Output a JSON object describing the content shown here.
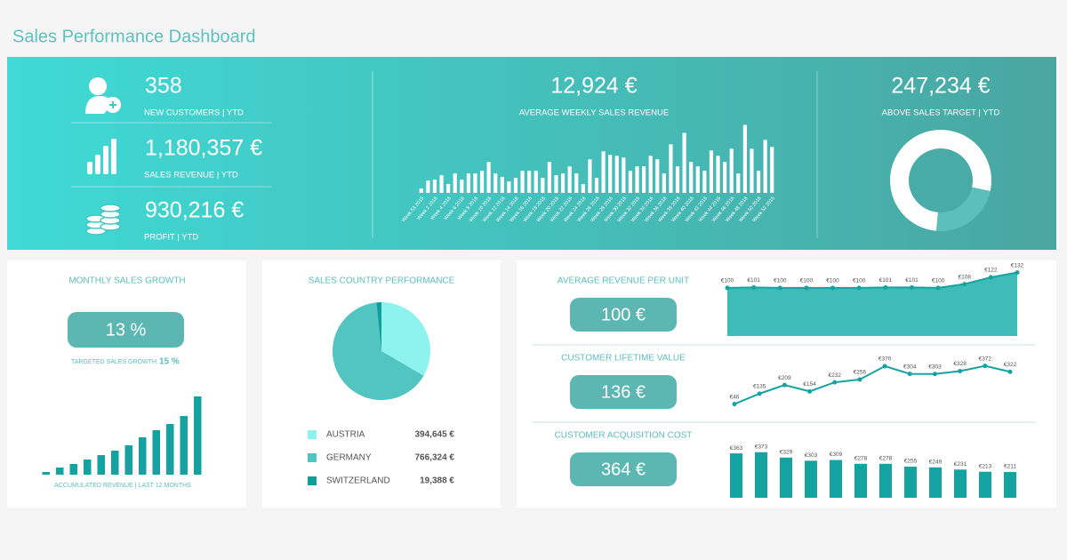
{
  "header": {
    "title": "Sales Performance Dashboard"
  },
  "kpis": [
    {
      "value": "358",
      "label": "NEW CUSTOMERS | YTD"
    },
    {
      "value": "1,180,357 €",
      "label": "SALES REVENUE | YTD"
    },
    {
      "value": "930,216 €",
      "label": "PROFIT | YTD"
    }
  ],
  "chart_data": [
    {
      "type": "bar",
      "headline": "12,924 €",
      "title": "AVERAGE WEEKLY SALES REVENUE",
      "categories": [
        "Week 53 2015",
        null,
        "Week 2 2016",
        null,
        "Week 4 2016",
        null,
        "Week 6 2016",
        null,
        "Week 8 2016",
        null,
        "Week 10 2016",
        null,
        "Week 12 2016",
        null,
        "Week 14 2016",
        null,
        "Week 16 2016",
        null,
        "Week 18 2016",
        null,
        "Week 20 2016",
        null,
        "Week 22 2016",
        null,
        "Week 24 2016",
        null,
        "Week 26 2016",
        null,
        "Week 28 2016",
        null,
        "Week 30 2016",
        null,
        "Week 32 2016",
        null,
        "Week 34 2016",
        null,
        "Week 36 2016",
        null,
        "Week 38 2016",
        null,
        "Week 40 2016",
        null,
        "Week 42 2016",
        null,
        "Week 44 2016",
        null,
        "Week 46 2016",
        null,
        "Week 48 2016",
        null,
        "Week 50 2016",
        null,
        "Week 52 2016"
      ],
      "values": [
        2000,
        5600,
        6000,
        8000,
        4000,
        8800,
        6000,
        8800,
        8800,
        10000,
        14000,
        8800,
        7200,
        5200,
        6800,
        10000,
        10000,
        10000,
        6800,
        14000,
        8000,
        8800,
        12000,
        8800,
        4000,
        15200,
        6800,
        18800,
        17200,
        16800,
        16000,
        10000,
        12000,
        12000,
        16800,
        15200,
        8800,
        22000,
        12000,
        27200,
        14000,
        12000,
        10000,
        19200,
        16800,
        14000,
        20000,
        8800,
        30800,
        20000,
        10000,
        24000,
        20800
      ],
      "color": "#ffffff",
      "ylim": [
        0,
        31000
      ]
    },
    {
      "type": "donut",
      "headline": "247,234 €",
      "title": "ABOVE SALES TARGET | YTD",
      "values": [
        77,
        23
      ],
      "colors": [
        "#ffffff",
        "#5cbfb9"
      ]
    },
    {
      "type": "bar",
      "title": "MONTHLY SALES GROWTH",
      "headline": "13 %",
      "target_label": "TARGETED SALES GROWTH:",
      "target_value": "15 %",
      "xlabel": "ACCUMULATED REVENUE | LAST 12 MONTHS",
      "values": [
        3,
        8,
        12,
        17,
        22,
        27,
        33,
        42,
        50,
        57,
        66,
        88
      ],
      "color": "#14a3a0",
      "ylim": [
        0,
        90
      ]
    },
    {
      "type": "pie",
      "title": "SALES COUNTRY PERFORMANCE",
      "categories": [
        "AUSTRIA",
        "GERMANY",
        "SWITZERLAND"
      ],
      "values": [
        394645,
        766324,
        19388
      ],
      "value_labels": [
        "394,645 €",
        "766,324 €",
        "19,388 €"
      ],
      "colors": [
        "#8ef2ef",
        "#52c4c2",
        "#0f9e99"
      ]
    },
    {
      "type": "area",
      "title": "AVERAGE REVENUE PER UNIT",
      "headline": "100 €",
      "values": [
        100,
        101,
        100,
        100,
        100,
        100,
        101,
        101,
        100,
        108,
        122,
        132
      ],
      "value_labels": [
        "€100",
        "€101",
        "€100",
        "€100",
        "€100",
        "€100",
        "€101",
        "€101",
        "€100",
        "€108",
        "€122",
        "€132"
      ],
      "color": "#3fbcb8",
      "ylim": [
        0,
        135
      ]
    },
    {
      "type": "line",
      "title": "CUSTOMER LIFETIME VALUE",
      "headline": "136 €",
      "values": [
        46,
        135,
        209,
        154,
        232,
        256,
        370,
        304,
        303,
        328,
        372,
        322
      ],
      "value_labels": [
        "€46",
        "€135",
        "€209",
        "€154",
        "€232",
        "€256",
        "€370",
        "€304",
        "€303",
        "€328",
        "€372",
        "€322"
      ],
      "color": "#14a3a0",
      "ylim": [
        20,
        400
      ]
    },
    {
      "type": "bar",
      "title": "CUSTOMER ACQUISITION COST",
      "headline": "364 €",
      "values": [
        363,
        373,
        329,
        303,
        309,
        278,
        278,
        255,
        249,
        231,
        213,
        211
      ],
      "value_labels": [
        "€363",
        "€373",
        "€329",
        "€303",
        "€309",
        "€278",
        "€278",
        "€255",
        "€249",
        "€231",
        "€213",
        "€211"
      ],
      "color": "#14a3a0",
      "ylim": [
        0,
        400
      ]
    }
  ]
}
